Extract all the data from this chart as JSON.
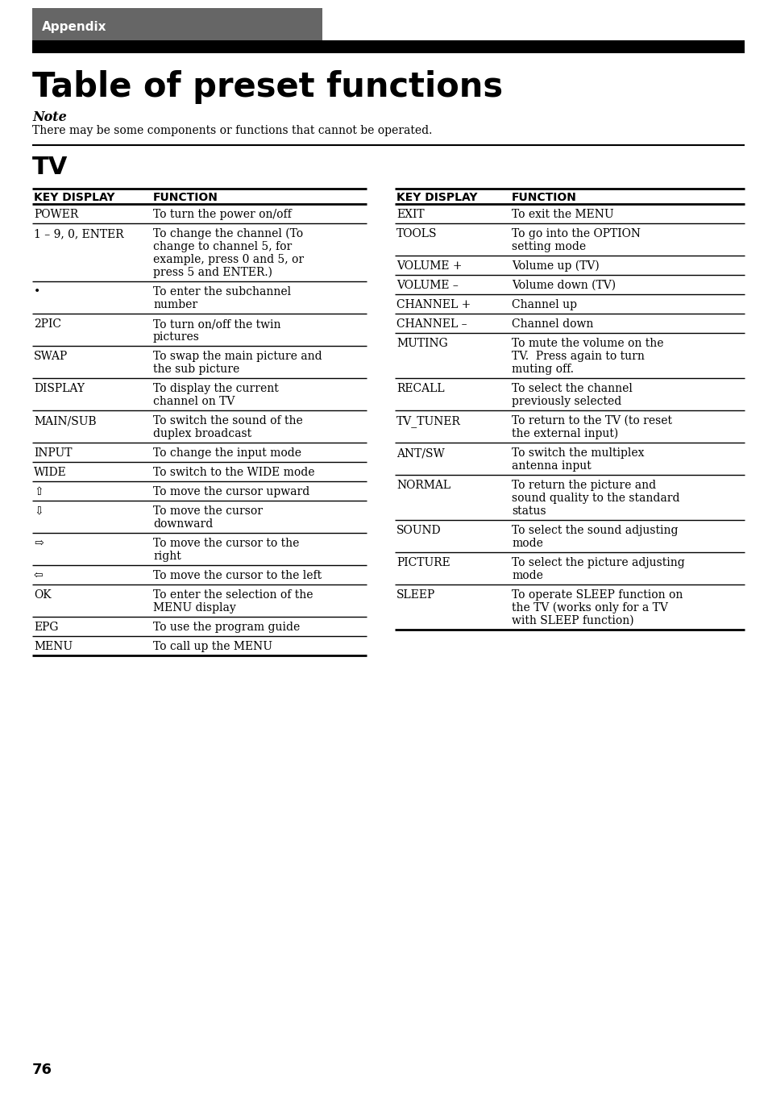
{
  "page_number": "76",
  "tab_label": "Appendix",
  "tab_bg": "#666666",
  "title": "Table of preset functions",
  "note_label": "Note",
  "note_text": "There may be some components or functions that cannot be operated.",
  "section": "TV",
  "col1_header": "KEY DISPLAY",
  "col2_header": "FUNCTION",
  "left_rows": [
    [
      "POWER",
      "To turn the power on/off"
    ],
    [
      "1 – 9, 0, ENTER",
      "To change the channel (To\nchange to channel 5, for\nexample, press 0 and 5, or\npress 5 and ENTER.)"
    ],
    [
      "•",
      "To enter the subchannel\nnumber"
    ],
    [
      "2PIC",
      "To turn on/off the twin\npictures"
    ],
    [
      "SWAP",
      "To swap the main picture and\nthe sub picture"
    ],
    [
      "DISPLAY",
      "To display the current\nchannel on TV"
    ],
    [
      "MAIN/SUB",
      "To switch the sound of the\nduplex broadcast"
    ],
    [
      "INPUT",
      "To change the input mode"
    ],
    [
      "WIDE",
      "To switch to the WIDE mode"
    ],
    [
      "⇧",
      "To move the cursor upward"
    ],
    [
      "⇩",
      "To move the cursor\ndownward"
    ],
    [
      "⇨",
      "To move the cursor to the\nright"
    ],
    [
      "⇦",
      "To move the cursor to the left"
    ],
    [
      "OK",
      "To enter the selection of the\nMENU display"
    ],
    [
      "EPG",
      "To use the program guide"
    ],
    [
      "MENU",
      "To call up the MENU"
    ]
  ],
  "right_rows": [
    [
      "EXIT",
      "To exit the MENU"
    ],
    [
      "TOOLS",
      "To go into the OPTION\nsetting mode"
    ],
    [
      "VOLUME +",
      "Volume up (TV)"
    ],
    [
      "VOLUME –",
      "Volume down (TV)"
    ],
    [
      "CHANNEL +",
      "Channel up"
    ],
    [
      "CHANNEL –",
      "Channel down"
    ],
    [
      "MUTING",
      "To mute the volume on the\nTV.  Press again to turn\nmuting off."
    ],
    [
      "RECALL",
      "To select the channel\npreviously selected"
    ],
    [
      "TV_TUNER",
      "To return to the TV (to reset\nthe external input)"
    ],
    [
      "ANT/SW",
      "To switch the multiplex\nantenna input"
    ],
    [
      "NORMAL",
      "To return the picture and\nsound quality to the standard\nstatus"
    ],
    [
      "SOUND",
      "To select the sound adjusting\nmode"
    ],
    [
      "PICTURE",
      "To select the picture adjusting\nmode"
    ],
    [
      "SLEEP",
      "To operate SLEEP function on\nthe TV (works only for a TV\nwith SLEEP function)"
    ]
  ]
}
